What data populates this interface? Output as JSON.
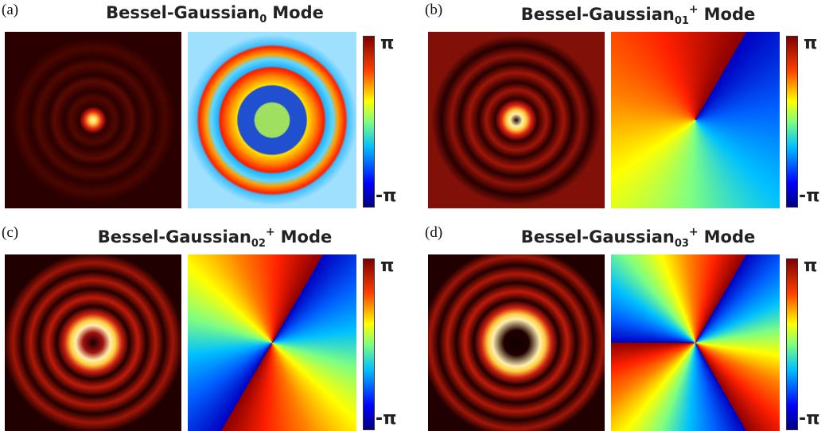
{
  "panels": [
    {
      "label": "(a)",
      "title": {
        "base": "Bessel-Gaussian",
        "sub": "0",
        "suffix": "Mode"
      },
      "colorbar": {
        "max": "π",
        "min": "-π"
      }
    },
    {
      "label": "(b)",
      "title": {
        "base": "Bessel-Gaussian",
        "sub": "01",
        "sup": "+",
        "suffix": "Mode"
      },
      "colorbar": {
        "max": "π",
        "min": "-π"
      }
    },
    {
      "label": "(c)",
      "title": {
        "base": "Bessel-Gaussian",
        "sub": "02",
        "sup": "+",
        "suffix": "Mode"
      },
      "colorbar": {
        "max": "π",
        "min": "-π"
      }
    },
    {
      "label": "(d)",
      "title": {
        "base": "Bessel-Gaussian",
        "sub": "03",
        "sup": "+",
        "suffix": "Mode"
      },
      "colorbar": {
        "max": "π",
        "min": "-π"
      }
    }
  ]
}
